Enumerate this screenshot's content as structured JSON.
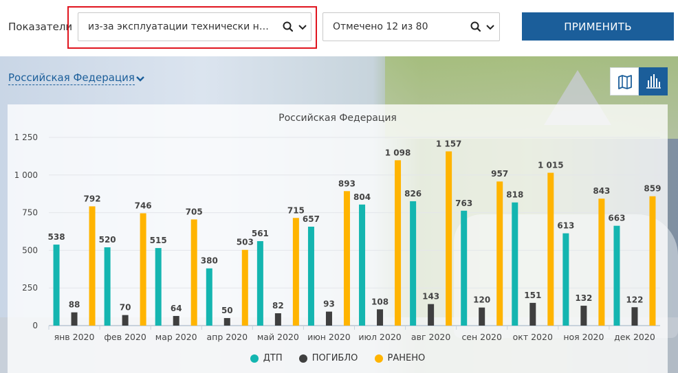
{
  "filters": {
    "label": "Показатели",
    "indicator": {
      "value": "из-за эксплуатации технически неи…"
    },
    "selection": {
      "value": "Отмечено 12 из 80"
    },
    "apply_label": "ПРИМЕНИТЬ"
  },
  "region": {
    "label": "Российская Федерация"
  },
  "icons": {
    "search": "search-icon",
    "chevron": "chevron-down-icon",
    "map": "map-icon",
    "bars": "bar-chart-icon"
  },
  "colors": {
    "accent": "#1b5e9a",
    "highlight": "#e0141e",
    "dtp": "#14b5b0",
    "pogiblo": "#3f3f3f",
    "raneno": "#ffb400"
  },
  "chart_data": {
    "type": "bar",
    "title": "Российская Федерация",
    "categories": [
      "янв 2020",
      "фев 2020",
      "мар 2020",
      "апр 2020",
      "май 2020",
      "июн 2020",
      "июл 2020",
      "авг 2020",
      "сен 2020",
      "окт 2020",
      "ноя 2020",
      "дек 2020"
    ],
    "ylim": [
      0,
      1250
    ],
    "yticks": [
      0,
      250,
      500,
      750,
      1000,
      1250
    ],
    "ytick_labels": [
      "0",
      "250",
      "500",
      "750",
      "1 000",
      "1 250"
    ],
    "grid": true,
    "legend_position": "bottom-center",
    "series": [
      {
        "name": "ДТП",
        "color": "#14b5b0",
        "values": [
          538,
          520,
          515,
          380,
          561,
          657,
          804,
          826,
          763,
          818,
          613,
          663
        ],
        "labels": [
          "538",
          "520",
          "515",
          "380",
          "561",
          "657",
          "804",
          "826",
          "763",
          "818",
          "613",
          "663"
        ]
      },
      {
        "name": "ПОГИБЛО",
        "color": "#3f3f3f",
        "values": [
          88,
          70,
          64,
          50,
          82,
          93,
          108,
          143,
          120,
          151,
          132,
          122
        ],
        "labels": [
          "88",
          "70",
          "64",
          "50",
          "82",
          "93",
          "108",
          "143",
          "120",
          "151",
          "132",
          "122"
        ]
      },
      {
        "name": "РАНЕНО",
        "color": "#ffb400",
        "values": [
          792,
          746,
          705,
          503,
          715,
          893,
          1098,
          1157,
          957,
          1015,
          843,
          859
        ],
        "labels": [
          "792",
          "746",
          "705",
          "503",
          "715",
          "893",
          "1 098",
          "1 157",
          "957",
          "1 015",
          "843",
          "859"
        ]
      }
    ]
  }
}
